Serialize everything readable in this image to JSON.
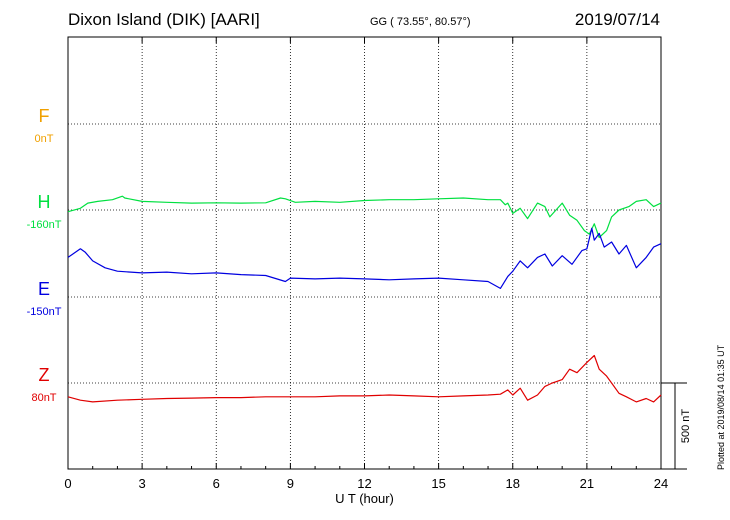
{
  "header": {
    "station": "Dixon Island (DIK)  [AARI]",
    "coords": "GG ( 73.55°,  80.57°)",
    "date": "2019/07/14"
  },
  "side_note": "Plotted at 2019/08/14 01:35 UT",
  "scale_label": "500 nT",
  "chart_data": {
    "type": "line",
    "xlabel": "U T (hour)",
    "xlim": [
      0,
      24
    ],
    "xticks": [
      "0",
      "3",
      "6",
      "9",
      "12",
      "15",
      "18",
      "21",
      "24"
    ],
    "scale_bar_nT": 500,
    "grid": true,
    "series": [
      {
        "name": "F",
        "baseline_label": "0nT",
        "color": "#f0a000",
        "offset_nT": 0,
        "x": [],
        "values": []
      },
      {
        "name": "H",
        "baseline_label": "-160nT",
        "color": "#00e040",
        "offset_nT": -160,
        "x": [
          0,
          0.5,
          0.8,
          1.2,
          1.8,
          2.2,
          2.3,
          3,
          4,
          5,
          6,
          7,
          8,
          8.6,
          8.8,
          9.2,
          10,
          11,
          12,
          13,
          14,
          15,
          16,
          17,
          17.5,
          17.7,
          17.8,
          18,
          18.3,
          18.6,
          19,
          19.3,
          19.5,
          20,
          20.3,
          20.6,
          20.9,
          21.1,
          21.3,
          21.5,
          21.8,
          22,
          22.3,
          22.7,
          23,
          23.4,
          23.7,
          24
        ],
        "values": [
          -170,
          -150,
          -120,
          -110,
          -100,
          -80,
          -90,
          -110,
          -115,
          -120,
          -118,
          -120,
          -118,
          -90,
          -95,
          -115,
          -110,
          -115,
          -105,
          -100,
          -100,
          -95,
          -90,
          -100,
          -100,
          -130,
          -120,
          -180,
          -150,
          -210,
          -120,
          -140,
          -200,
          -120,
          -190,
          -220,
          -280,
          -300,
          -240,
          -320,
          -280,
          -200,
          -160,
          -140,
          -110,
          -100,
          -140,
          -120
        ]
      },
      {
        "name": "E",
        "baseline_label": "-150nT",
        "color": "#0000e0",
        "offset_nT": -150,
        "x": [
          0,
          0.5,
          0.7,
          1,
          1.5,
          2,
          3,
          4,
          5,
          6,
          7,
          8,
          8.8,
          9,
          10,
          11,
          12,
          13,
          14,
          15,
          16,
          17,
          17.5,
          17.8,
          18,
          18.3,
          18.6,
          19,
          19.3,
          19.6,
          20,
          20.4,
          20.8,
          21,
          21.2,
          21.3,
          21.5,
          21.7,
          22,
          22.3,
          22.6,
          23,
          23.4,
          23.7,
          24
        ],
        "values": [
          80,
          130,
          110,
          60,
          20,
          0,
          -10,
          -5,
          -15,
          -10,
          -20,
          -25,
          -60,
          -40,
          -45,
          -40,
          -45,
          -50,
          -45,
          -40,
          -50,
          -60,
          -100,
          -30,
          0,
          60,
          20,
          80,
          100,
          30,
          90,
          40,
          120,
          130,
          250,
          180,
          220,
          140,
          170,
          100,
          150,
          20,
          80,
          140,
          160
        ]
      },
      {
        "name": "Z",
        "baseline_label": "80nT",
        "color": "#e00000",
        "offset_nT": 80,
        "x": [
          0,
          0.5,
          1,
          2,
          3,
          4,
          5,
          6,
          7,
          8,
          9,
          10,
          11,
          12,
          13,
          14,
          15,
          16,
          17,
          17.5,
          17.8,
          18,
          18.3,
          18.6,
          19,
          19.3,
          19.6,
          20,
          20.3,
          20.6,
          21,
          21.3,
          21.5,
          21.8,
          22,
          22.3,
          22.6,
          23,
          23.4,
          23.7,
          24
        ],
        "values": [
          0,
          -20,
          -30,
          -20,
          -15,
          -10,
          -8,
          -5,
          -5,
          0,
          0,
          0,
          5,
          5,
          10,
          5,
          0,
          5,
          10,
          15,
          40,
          10,
          50,
          -20,
          10,
          60,
          80,
          100,
          160,
          140,
          200,
          240,
          160,
          120,
          80,
          20,
          0,
          -30,
          -10,
          -30,
          10
        ]
      }
    ]
  }
}
